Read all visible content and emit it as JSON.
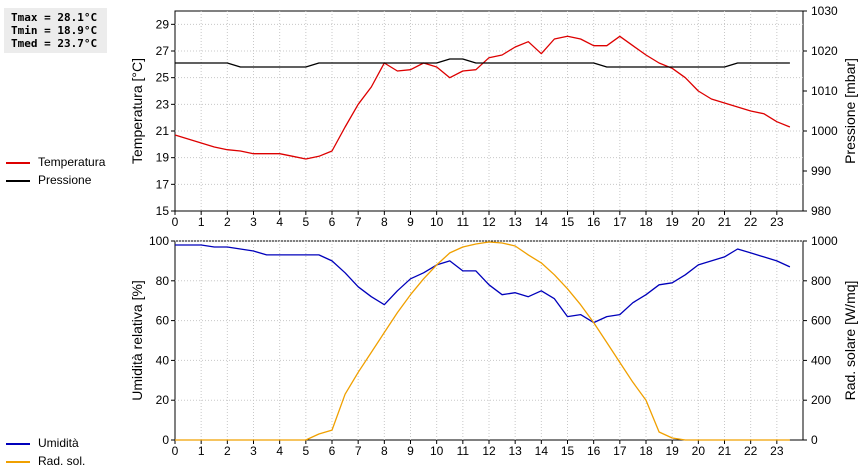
{
  "stats": {
    "tmax": "Tmax = 28.1°C",
    "tmin": "Tmin = 18.9°C",
    "tmed": "Tmed = 23.7°C"
  },
  "legend_top": [
    {
      "label": "Temperatura",
      "color": "#dd0000"
    },
    {
      "label": "Pressione",
      "color": "#000000"
    }
  ],
  "legend_bottom": [
    {
      "label": "Umidità",
      "color": "#0000bb"
    },
    {
      "label": "Rad. sol.",
      "color": "#f0a000"
    }
  ],
  "chart_data": [
    {
      "type": "line",
      "xlim": [
        0,
        24
      ],
      "x_ticks": [
        "0",
        "1",
        "2",
        "3",
        "4",
        "5",
        "6",
        "7",
        "8",
        "9",
        "10",
        "11",
        "12",
        "13",
        "14",
        "15",
        "16",
        "17",
        "18",
        "19",
        "20",
        "21",
        "22",
        "23"
      ],
      "left_axis": {
        "label": "Temperatura [°C]",
        "ylim": [
          15,
          30
        ],
        "ticks": [
          15,
          17,
          19,
          21,
          23,
          25,
          27,
          29
        ]
      },
      "right_axis": {
        "label": "Pressione [mbar]",
        "ylim": [
          980,
          1030
        ],
        "ticks": [
          980,
          990,
          1000,
          1010,
          1020,
          1030
        ]
      },
      "grid": true,
      "series": [
        {
          "name": "Temperatura",
          "axis": "left",
          "color": "#dd0000",
          "x": [
            0,
            0.5,
            1,
            1.5,
            2,
            2.5,
            3,
            3.5,
            4,
            4.5,
            5,
            5.5,
            6,
            6.5,
            7,
            7.5,
            8,
            8.5,
            9,
            9.5,
            10,
            10.5,
            11,
            11.5,
            12,
            12.5,
            13,
            13.5,
            14,
            14.5,
            15,
            15.5,
            16,
            16.5,
            17,
            17.5,
            18,
            18.5,
            19,
            19.5,
            20,
            20.5,
            21,
            21.5,
            22,
            22.5,
            23,
            23.5
          ],
          "y": [
            20.7,
            20.4,
            20.1,
            19.8,
            19.6,
            19.5,
            19.3,
            19.3,
            19.3,
            19.1,
            18.9,
            19.1,
            19.5,
            21.3,
            23.0,
            24.3,
            26.1,
            25.5,
            25.6,
            26.1,
            25.8,
            25.0,
            25.5,
            25.6,
            26.5,
            26.7,
            27.3,
            27.7,
            26.8,
            27.9,
            28.1,
            27.9,
            27.4,
            27.4,
            28.1,
            27.4,
            26.7,
            26.1,
            25.7,
            25.0,
            24.0,
            23.4,
            23.1,
            22.8,
            22.5,
            22.3,
            21.7,
            21.3
          ]
        },
        {
          "name": "Pressione",
          "axis": "right",
          "color": "#000000",
          "x": [
            0,
            0.5,
            1,
            1.5,
            2,
            2.5,
            3,
            3.5,
            4,
            4.5,
            5,
            5.5,
            6,
            6.5,
            7,
            7.5,
            8,
            8.5,
            9,
            9.5,
            10,
            10.5,
            11,
            11.5,
            12,
            12.5,
            13,
            13.5,
            14,
            14.5,
            15,
            15.5,
            16,
            16.5,
            17,
            17.5,
            18,
            18.5,
            19,
            19.5,
            20,
            20.5,
            21,
            21.5,
            22,
            22.5,
            23,
            23.5
          ],
          "y": [
            1017,
            1017,
            1017,
            1017,
            1017,
            1016,
            1016,
            1016,
            1016,
            1016,
            1016,
            1017,
            1017,
            1017,
            1017,
            1017,
            1017,
            1017,
            1017,
            1017,
            1017,
            1018,
            1018,
            1017,
            1017,
            1017,
            1017,
            1017,
            1017,
            1017,
            1017,
            1017,
            1017,
            1016,
            1016,
            1016,
            1016,
            1016,
            1016,
            1016,
            1016,
            1016,
            1016,
            1017,
            1017,
            1017,
            1017,
            1017
          ]
        }
      ]
    },
    {
      "type": "line",
      "xlim": [
        0,
        24
      ],
      "x_ticks": [
        "0",
        "1",
        "2",
        "3",
        "4",
        "5",
        "6",
        "7",
        "8",
        "9",
        "10",
        "11",
        "12",
        "13",
        "14",
        "15",
        "16",
        "17",
        "18",
        "19",
        "20",
        "21",
        "22",
        "23"
      ],
      "left_axis": {
        "label": "Umidità relativa [%]",
        "ylim": [
          0,
          100
        ],
        "ticks": [
          0,
          20,
          40,
          60,
          80,
          100
        ]
      },
      "right_axis": {
        "label": "Rad. solare [W/mq]",
        "ylim": [
          0,
          1000
        ],
        "ticks": [
          0,
          200,
          400,
          600,
          800,
          1000
        ]
      },
      "grid": true,
      "series": [
        {
          "name": "Umidità",
          "axis": "left",
          "color": "#0000bb",
          "x": [
            0,
            0.5,
            1,
            1.5,
            2,
            2.5,
            3,
            3.5,
            4,
            4.5,
            5,
            5.5,
            6,
            6.5,
            7,
            7.5,
            8,
            8.5,
            9,
            9.5,
            10,
            10.5,
            11,
            11.5,
            12,
            12.5,
            13,
            13.5,
            14,
            14.5,
            15,
            15.5,
            16,
            16.5,
            17,
            17.5,
            18,
            18.5,
            19,
            19.5,
            20,
            20.5,
            21,
            21.5,
            22,
            22.5,
            23,
            23.5
          ],
          "y": [
            98,
            98,
            98,
            97,
            97,
            96,
            95,
            93,
            93,
            93,
            93,
            93,
            90,
            84,
            77,
            72,
            68,
            75,
            81,
            84,
            88,
            90,
            85,
            85,
            78,
            73,
            74,
            72,
            75,
            71,
            62,
            63,
            59,
            62,
            63,
            69,
            73,
            78,
            79,
            83,
            88,
            90,
            92,
            96,
            94,
            92,
            90,
            87
          ]
        },
        {
          "name": "Rad. sol.",
          "axis": "right",
          "color": "#f0a000",
          "x": [
            0,
            0.5,
            1,
            1.5,
            2,
            2.5,
            3,
            3.5,
            4,
            4.5,
            5,
            5.5,
            6,
            6.5,
            7,
            7.5,
            8,
            8.5,
            9,
            9.5,
            10,
            10.5,
            11,
            11.5,
            12,
            12.5,
            13,
            13.5,
            14,
            14.5,
            15,
            15.5,
            16,
            16.5,
            17,
            17.5,
            18,
            18.5,
            19,
            19.5,
            20,
            20.5,
            21,
            21.5,
            22,
            22.5,
            23,
            23.5
          ],
          "y": [
            0,
            0,
            0,
            0,
            0,
            0,
            0,
            0,
            0,
            0,
            0,
            30,
            50,
            230,
            340,
            440,
            540,
            640,
            730,
            810,
            880,
            940,
            970,
            985,
            995,
            990,
            975,
            930,
            890,
            830,
            760,
            680,
            590,
            490,
            390,
            290,
            200,
            40,
            10,
            0,
            0,
            0,
            0,
            0,
            0,
            0,
            0,
            0
          ]
        }
      ]
    }
  ]
}
